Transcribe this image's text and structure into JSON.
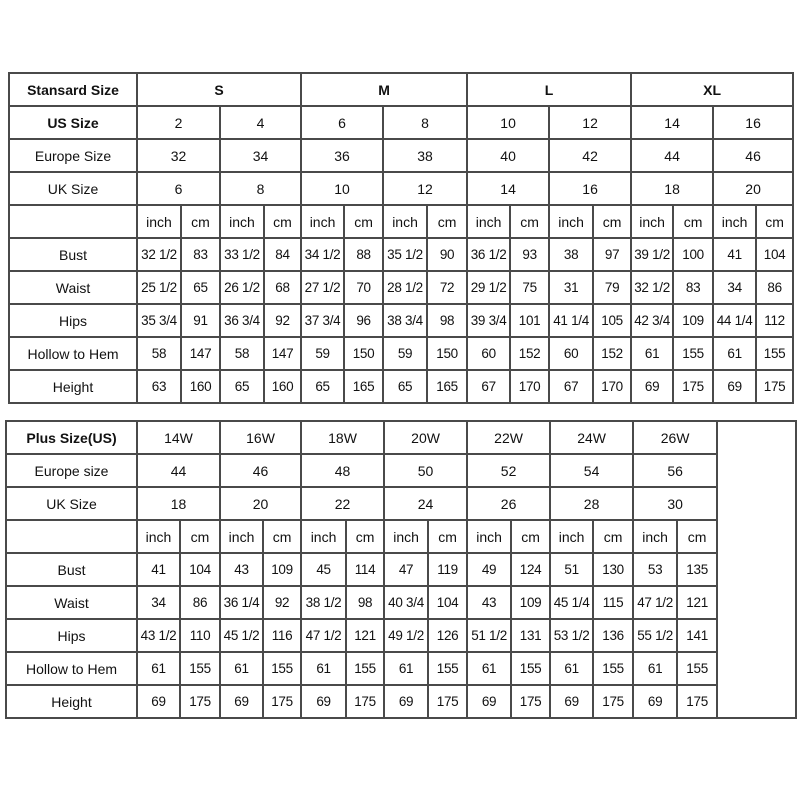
{
  "standard_table": {
    "header_label": "Stansard Size",
    "sizes": [
      "S",
      "M",
      "L",
      "XL"
    ],
    "size_rows": [
      {
        "label": "US Size",
        "values": [
          "2",
          "4",
          "6",
          "8",
          "10",
          "12",
          "14",
          "16"
        ]
      },
      {
        "label": "Europe Size",
        "values": [
          "32",
          "34",
          "36",
          "38",
          "40",
          "42",
          "44",
          "46"
        ]
      },
      {
        "label": "UK Size",
        "values": [
          "6",
          "8",
          "10",
          "12",
          "14",
          "16",
          "18",
          "20"
        ]
      }
    ],
    "units": [
      "inch",
      "cm"
    ],
    "measurements": [
      {
        "label": "Bust",
        "values": [
          "32 1/2",
          "83",
          "33 1/2",
          "84",
          "34 1/2",
          "88",
          "35 1/2",
          "90",
          "36 1/2",
          "93",
          "38",
          "97",
          "39 1/2",
          "100",
          "41",
          "104"
        ]
      },
      {
        "label": "Waist",
        "values": [
          "25 1/2",
          "65",
          "26 1/2",
          "68",
          "27 1/2",
          "70",
          "28 1/2",
          "72",
          "29 1/2",
          "75",
          "31",
          "79",
          "32 1/2",
          "83",
          "34",
          "86"
        ]
      },
      {
        "label": "Hips",
        "values": [
          "35 3/4",
          "91",
          "36 3/4",
          "92",
          "37 3/4",
          "96",
          "38 3/4",
          "98",
          "39 3/4",
          "101",
          "41 1/4",
          "105",
          "42 3/4",
          "109",
          "44 1/4",
          "112"
        ]
      },
      {
        "label": "Hollow to Hem",
        "values": [
          "58",
          "147",
          "58",
          "147",
          "59",
          "150",
          "59",
          "150",
          "60",
          "152",
          "60",
          "152",
          "61",
          "155",
          "61",
          "155"
        ]
      },
      {
        "label": "Height",
        "values": [
          "63",
          "160",
          "65",
          "160",
          "65",
          "165",
          "65",
          "165",
          "67",
          "170",
          "67",
          "170",
          "69",
          "175",
          "69",
          "175"
        ]
      }
    ]
  },
  "plus_table": {
    "header_label": "Plus Size(US)",
    "sizes": [
      "14W",
      "16W",
      "18W",
      "20W",
      "22W",
      "24W",
      "26W"
    ],
    "size_rows": [
      {
        "label": "Europe size",
        "values": [
          "44",
          "46",
          "48",
          "50",
          "52",
          "54",
          "56"
        ]
      },
      {
        "label": "UK Size",
        "values": [
          "18",
          "20",
          "22",
          "24",
          "26",
          "28",
          "30"
        ]
      }
    ],
    "units": [
      "inch",
      "cm"
    ],
    "measurements": [
      {
        "label": "Bust",
        "values": [
          "41",
          "104",
          "43",
          "109",
          "45",
          "114",
          "47",
          "119",
          "49",
          "124",
          "51",
          "130",
          "53",
          "135"
        ]
      },
      {
        "label": "Waist",
        "values": [
          "34",
          "86",
          "36 1/4",
          "92",
          "38 1/2",
          "98",
          "40 3/4",
          "104",
          "43",
          "109",
          "45 1/4",
          "115",
          "47 1/2",
          "121"
        ]
      },
      {
        "label": "Hips",
        "values": [
          "43 1/2",
          "110",
          "45 1/2",
          "116",
          "47 1/2",
          "121",
          "49 1/2",
          "126",
          "51 1/2",
          "131",
          "53 1/2",
          "136",
          "55 1/2",
          "141"
        ]
      },
      {
        "label": "Hollow to Hem",
        "values": [
          "61",
          "155",
          "61",
          "155",
          "61",
          "155",
          "61",
          "155",
          "61",
          "155",
          "61",
          "155",
          "61",
          "155"
        ]
      },
      {
        "label": "Height",
        "values": [
          "69",
          "175",
          "69",
          "175",
          "69",
          "175",
          "69",
          "175",
          "69",
          "175",
          "69",
          "175",
          "69",
          "175"
        ]
      }
    ]
  }
}
